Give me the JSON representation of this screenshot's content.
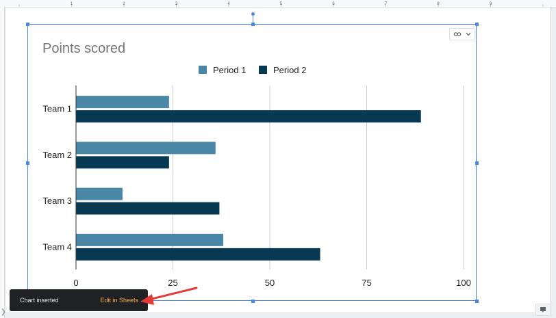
{
  "ruler": {
    "ticks": [
      "1",
      "2",
      "3",
      "4",
      "5",
      "6",
      "7",
      "8",
      "9"
    ]
  },
  "chart_menu": {
    "icon": "link-icon"
  },
  "toast": {
    "message": "Chart inserted",
    "action": "Edit in Sheets"
  },
  "annotation": {
    "arrow_color": "#e53935"
  },
  "chart_data": {
    "type": "bar",
    "orientation": "horizontal",
    "title": "Points scored",
    "categories": [
      "Team 1",
      "Team 2",
      "Team 3",
      "Team 4"
    ],
    "series": [
      {
        "name": "Period 1",
        "color": "#4a87a6",
        "values": [
          24,
          36,
          12,
          38
        ]
      },
      {
        "name": "Period 2",
        "color": "#073a52",
        "values": [
          89,
          24,
          37,
          63
        ]
      }
    ],
    "xlim": [
      0,
      100
    ],
    "xticks": [
      "0",
      "25",
      "50",
      "75",
      "100"
    ],
    "legend_position": "top",
    "grid": "vertical",
    "title_color": "#757575"
  }
}
